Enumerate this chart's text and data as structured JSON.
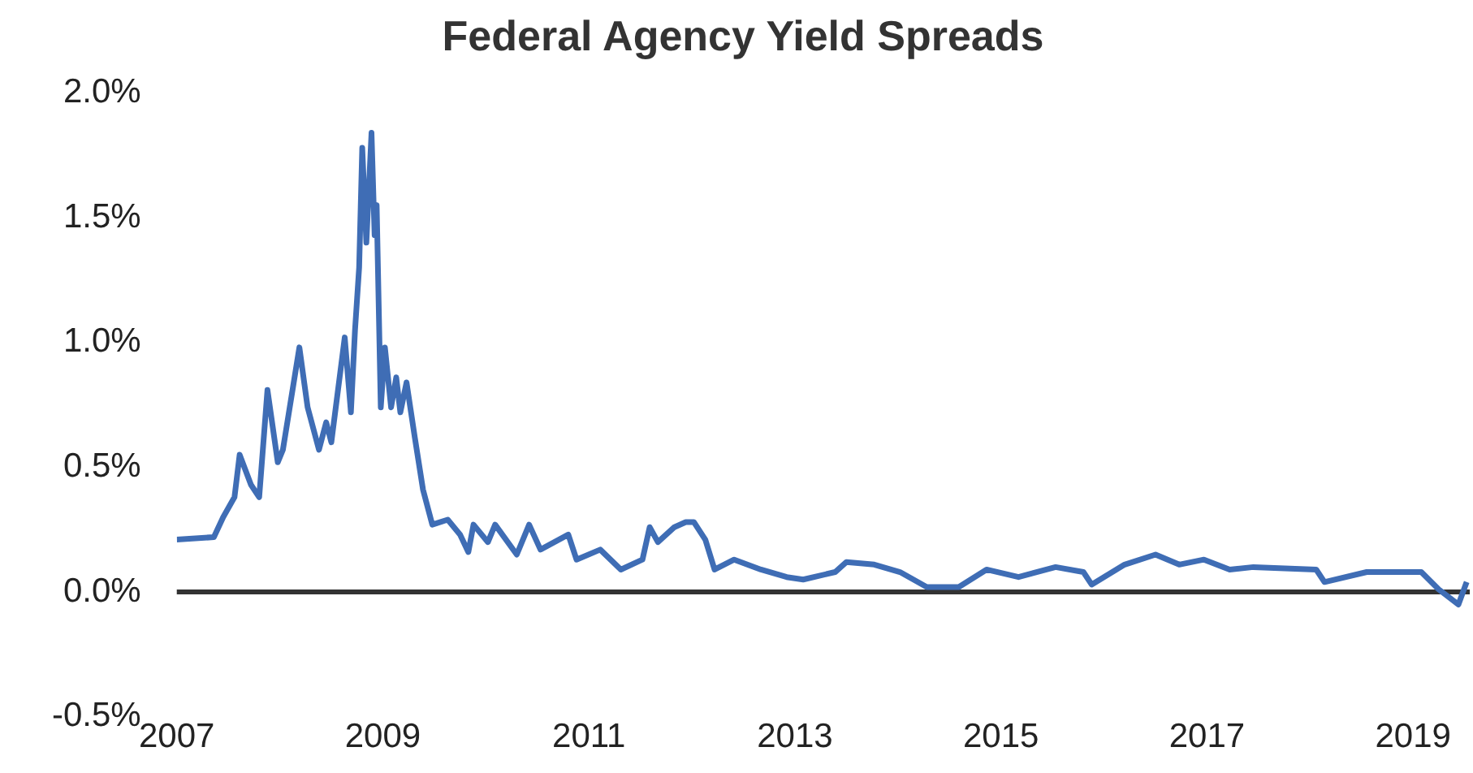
{
  "chart_data": {
    "type": "line",
    "title": "Federal Agency Yield Spreads",
    "x": [
      2007.0,
      2007.36,
      2007.45,
      2007.56,
      2007.61,
      2007.72,
      2007.8,
      2007.88,
      2007.98,
      2008.03,
      2008.19,
      2008.27,
      2008.38,
      2008.45,
      2008.5,
      2008.63,
      2008.69,
      2008.73,
      2008.77,
      2008.8,
      2008.84,
      2008.89,
      2008.92,
      2008.94,
      2008.98,
      2009.02,
      2009.08,
      2009.13,
      2009.17,
      2009.23,
      2009.31,
      2009.39,
      2009.48,
      2009.63,
      2009.75,
      2009.83,
      2009.88,
      2010.02,
      2010.09,
      2010.3,
      2010.42,
      2010.53,
      2010.8,
      2010.88,
      2011.11,
      2011.31,
      2011.52,
      2011.59,
      2011.67,
      2011.83,
      2011.94,
      2012.02,
      2012.13,
      2012.22,
      2012.41,
      2012.67,
      2012.92,
      2013.08,
      2013.39,
      2013.5,
      2013.77,
      2014.02,
      2014.28,
      2014.59,
      2014.86,
      2015.17,
      2015.53,
      2015.8,
      2015.88,
      2016.2,
      2016.5,
      2016.73,
      2016.97,
      2017.22,
      2017.45,
      2018.06,
      2018.14,
      2018.55,
      2019.08,
      2019.25,
      2019.44,
      2019.52
    ],
    "series": [
      {
        "color": "#3f6db5",
        "values": [
          0.21,
          0.22,
          0.3,
          0.38,
          0.55,
          0.43,
          0.38,
          0.81,
          0.52,
          0.57,
          0.98,
          0.74,
          0.57,
          0.68,
          0.6,
          1.02,
          0.72,
          1.05,
          1.3,
          1.78,
          1.4,
          1.84,
          1.43,
          1.55,
          0.74,
          0.98,
          0.74,
          0.86,
          0.72,
          0.84,
          0.62,
          0.41,
          0.27,
          0.29,
          0.23,
          0.16,
          0.27,
          0.2,
          0.27,
          0.15,
          0.27,
          0.17,
          0.23,
          0.13,
          0.17,
          0.09,
          0.13,
          0.26,
          0.2,
          0.26,
          0.28,
          0.28,
          0.21,
          0.09,
          0.13,
          0.09,
          0.06,
          0.05,
          0.08,
          0.12,
          0.11,
          0.08,
          0.02,
          0.02,
          0.09,
          0.06,
          0.1,
          0.08,
          0.03,
          0.11,
          0.15,
          0.11,
          0.13,
          0.09,
          0.1,
          0.09,
          0.04,
          0.08,
          0.08,
          0.01,
          -0.05,
          0.04
        ]
      }
    ],
    "xlim": [
      2007,
      2019.55
    ],
    "xticks": [
      2007,
      2009,
      2011,
      2013,
      2015,
      2017,
      2019
    ],
    "ylim": [
      -0.5,
      2.0
    ],
    "yticks": [
      {
        "value": -0.5,
        "label": "-0.5%"
      },
      {
        "value": 0,
        "label": "0.0%"
      },
      {
        "value": 0.5,
        "label": "0.5%"
      },
      {
        "value": 1.0,
        "label": "1.0%"
      },
      {
        "value": 1.5,
        "label": "1.5%"
      },
      {
        "value": 2.0,
        "label": "2.0%"
      }
    ],
    "ref_lines": [
      {
        "axis": "y",
        "value": 0,
        "color": "#333333"
      }
    ],
    "grid": false,
    "legend": false,
    "marker": "none",
    "line_style": "solid"
  }
}
